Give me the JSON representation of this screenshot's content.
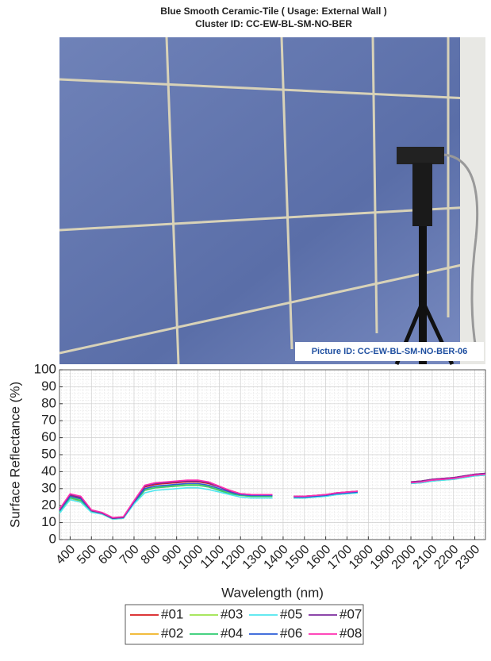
{
  "photo": {
    "picture_id": "Picture ID: CC-EW-BL-SM-NO-BER-06"
  },
  "chart_data": {
    "type": "line",
    "title": "Blue Smooth Ceramic-Tile ( Usage: External Wall )",
    "subtitle": "Cluster ID: CC-EW-BL-SM-NO-BER",
    "x_label": "Wavelength (nm)",
    "y_label": "Surface Reflectance (%)",
    "x": [
      350,
      400,
      450,
      500,
      550,
      600,
      650,
      700,
      750,
      800,
      850,
      900,
      950,
      1000,
      1050,
      1100,
      1150,
      1200,
      1250,
      1300,
      1350,
      1400,
      1450,
      1500,
      1550,
      1600,
      1650,
      1700,
      1750,
      1900,
      2000,
      2050,
      2100,
      2150,
      2200,
      2250,
      2300,
      2350
    ],
    "series": [
      {
        "name": "#01",
        "color": "#d7191c",
        "values": [
          17,
          26,
          24.5,
          17,
          15.5,
          12.5,
          13,
          22.5,
          31,
          32.5,
          33,
          33.5,
          34,
          34,
          33,
          31,
          29,
          27,
          26.5,
          26.5,
          26.5,
          null,
          25.5,
          25.5,
          26,
          26.5,
          27.5,
          28,
          28.5,
          null,
          34,
          34.5,
          35.5,
          36,
          36.5,
          37.5,
          38.5,
          39
        ]
      },
      {
        "name": "#02",
        "color": "#f0b323",
        "values": [
          16.5,
          23.5,
          22.5,
          16.5,
          15,
          12,
          12.5,
          21.5,
          29,
          30.5,
          31,
          31.5,
          32,
          32,
          31,
          29,
          27,
          26,
          25.5,
          25.5,
          25.5,
          null,
          25,
          25,
          25.5,
          26,
          27,
          27.5,
          28,
          null,
          33.5,
          34,
          35,
          35.5,
          36,
          37,
          38,
          38.5
        ]
      },
      {
        "name": "#03",
        "color": "#9be34a",
        "values": [
          17,
          25,
          23.5,
          17,
          15.5,
          12.5,
          13,
          22,
          29.5,
          31,
          31.5,
          32,
          32.5,
          32.5,
          31.5,
          29.5,
          27.5,
          26.5,
          26,
          26,
          26,
          null,
          25,
          25,
          25.5,
          26,
          27,
          27.5,
          28,
          null,
          33.5,
          34,
          35,
          35.5,
          36,
          37,
          38,
          38.5
        ]
      },
      {
        "name": "#04",
        "color": "#2ecc71",
        "values": [
          16.5,
          24.5,
          23,
          16.5,
          15.5,
          12.5,
          13,
          21.5,
          29,
          30.5,
          31,
          31.5,
          32,
          32,
          31,
          29,
          27,
          26,
          25.5,
          25.5,
          25.5,
          null,
          24.5,
          24.5,
          25,
          25.5,
          26.5,
          27,
          27.5,
          null,
          33,
          33.5,
          34.5,
          35,
          35.5,
          36.5,
          37.5,
          38
        ]
      },
      {
        "name": "#05",
        "color": "#4ee6ee",
        "values": [
          15.5,
          23.5,
          22,
          16,
          15,
          12,
          12.5,
          21,
          27.5,
          29,
          29.5,
          30,
          30.5,
          30.5,
          29.5,
          28,
          26.5,
          25,
          24.5,
          24.5,
          24.5,
          null,
          24.5,
          24.5,
          25,
          25.5,
          26.5,
          27,
          27.5,
          null,
          33,
          33.5,
          34.5,
          35,
          35.5,
          36.5,
          37.5,
          38
        ]
      },
      {
        "name": "#06",
        "color": "#2a5bd7",
        "values": [
          17,
          25.5,
          24,
          17,
          15.5,
          12.5,
          13,
          22,
          30,
          31.5,
          32,
          32.5,
          33,
          33,
          32,
          30,
          28,
          26.5,
          26,
          26,
          26,
          null,
          25,
          25,
          25.5,
          26,
          27,
          27.5,
          28,
          null,
          33.5,
          34,
          35,
          35.5,
          36,
          37,
          38,
          38.5
        ]
      },
      {
        "name": "#07",
        "color": "#7d2c9e",
        "values": [
          17.5,
          26.5,
          25,
          17,
          15.5,
          12.5,
          13,
          22.5,
          31.5,
          33,
          33.5,
          34,
          34.5,
          34.5,
          33.5,
          31,
          28.5,
          27,
          26.5,
          26.5,
          26.5,
          null,
          25.5,
          25.5,
          26,
          26.5,
          27.5,
          28,
          28.5,
          null,
          34,
          34.5,
          35.5,
          36,
          36.5,
          37.5,
          38.5,
          39
        ]
      },
      {
        "name": "#08",
        "color": "#ff2fb0",
        "values": [
          18,
          27,
          25.5,
          17.5,
          16,
          13,
          13.5,
          23,
          32,
          33.5,
          34,
          34.5,
          35,
          35,
          34,
          31.5,
          29,
          27,
          26.5,
          26.5,
          26.5,
          null,
          25.5,
          25.5,
          26,
          26.5,
          27.5,
          28,
          28.5,
          null,
          33.5,
          34,
          35,
          35.5,
          36,
          37,
          38,
          38.5
        ]
      }
    ],
    "xlim": [
      350,
      2350
    ],
    "ylim": [
      0,
      100
    ],
    "xticks": [
      400,
      500,
      600,
      700,
      800,
      900,
      1000,
      1100,
      1200,
      1300,
      1400,
      1500,
      1600,
      1700,
      1800,
      1900,
      2000,
      2100,
      2200,
      2300
    ],
    "yticks": [
      0,
      10,
      20,
      30,
      40,
      50,
      60,
      70,
      80,
      90,
      100
    ],
    "grid": true,
    "minor_grid": true,
    "legend": "bottom"
  }
}
